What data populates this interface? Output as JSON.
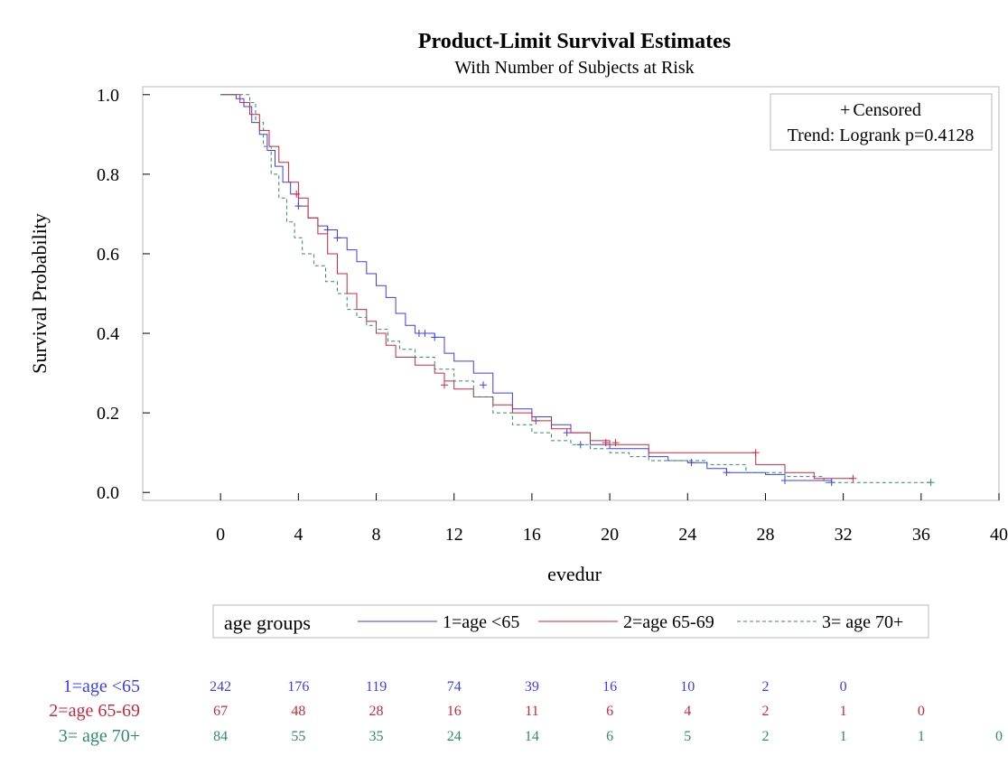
{
  "chart_data": {
    "type": "line",
    "title": "Product-Limit Survival Estimates",
    "subtitle": "With Number of Subjects at Risk",
    "xlabel": "evedur",
    "ylabel": "Survival Probability",
    "xlim": [
      -4,
      40
    ],
    "ylim": [
      -0.02,
      1.02
    ],
    "xticks": [
      0,
      4,
      8,
      12,
      16,
      20,
      24,
      28,
      32,
      36,
      40
    ],
    "yticks": [
      "0.0",
      "0.2",
      "0.4",
      "0.6",
      "0.8",
      "1.0"
    ],
    "grid": false,
    "inset_legend": {
      "position": "top-right",
      "censored_label": "Censored",
      "censored_symbol": "+",
      "test_label": "Trend: Logrank p=0.4128"
    },
    "legend": {
      "position": "bottom",
      "title": "age groups"
    },
    "series": [
      {
        "name": "1=age <65",
        "color": "#3d3df0",
        "dash": "",
        "points": [
          [
            0,
            1.0
          ],
          [
            0.8,
            0.99
          ],
          [
            1.2,
            0.97
          ],
          [
            1.6,
            0.93
          ],
          [
            2.0,
            0.9
          ],
          [
            2.4,
            0.86
          ],
          [
            2.8,
            0.82
          ],
          [
            3.2,
            0.78
          ],
          [
            3.6,
            0.75
          ],
          [
            4.0,
            0.72
          ],
          [
            4.5,
            0.69
          ],
          [
            5.0,
            0.67
          ],
          [
            5.5,
            0.66
          ],
          [
            6.0,
            0.64
          ],
          [
            6.5,
            0.61
          ],
          [
            7.0,
            0.58
          ],
          [
            7.5,
            0.55
          ],
          [
            8.0,
            0.52
          ],
          [
            8.5,
            0.49
          ],
          [
            9.0,
            0.45
          ],
          [
            9.5,
            0.42
          ],
          [
            10.0,
            0.4
          ],
          [
            11.0,
            0.39
          ],
          [
            11.5,
            0.35
          ],
          [
            12.0,
            0.33
          ],
          [
            13.0,
            0.3
          ],
          [
            14.0,
            0.25
          ],
          [
            15.0,
            0.21
          ],
          [
            16.0,
            0.19
          ],
          [
            17.0,
            0.17
          ],
          [
            18.0,
            0.15
          ],
          [
            19.0,
            0.12
          ],
          [
            20.0,
            0.11
          ],
          [
            22.0,
            0.09
          ],
          [
            23.0,
            0.08
          ],
          [
            24.0,
            0.075
          ],
          [
            25.0,
            0.06
          ],
          [
            26.0,
            0.05
          ],
          [
            28.0,
            0.045
          ],
          [
            29.0,
            0.03
          ],
          [
            31.4,
            0.025
          ]
        ],
        "censored": [
          [
            4.0,
            0.72
          ],
          [
            5.5,
            0.66
          ],
          [
            6.0,
            0.64
          ],
          [
            10.2,
            0.4
          ],
          [
            10.5,
            0.4
          ],
          [
            11.0,
            0.39
          ],
          [
            13.5,
            0.27
          ],
          [
            16.2,
            0.18
          ],
          [
            17.8,
            0.15
          ],
          [
            18.5,
            0.12
          ],
          [
            24.2,
            0.075
          ],
          [
            26.0,
            0.05
          ],
          [
            29.0,
            0.03
          ],
          [
            31.4,
            0.025
          ]
        ]
      },
      {
        "name": "2=age 65-69",
        "color": "#c8283c",
        "dash": "",
        "points": [
          [
            0,
            1.0
          ],
          [
            1.0,
            0.98
          ],
          [
            1.5,
            0.95
          ],
          [
            2.0,
            0.91
          ],
          [
            2.5,
            0.87
          ],
          [
            3.0,
            0.83
          ],
          [
            3.5,
            0.78
          ],
          [
            4.0,
            0.74
          ],
          [
            4.5,
            0.69
          ],
          [
            5.0,
            0.65
          ],
          [
            5.5,
            0.6
          ],
          [
            6.0,
            0.55
          ],
          [
            6.5,
            0.5
          ],
          [
            7.0,
            0.46
          ],
          [
            7.5,
            0.43
          ],
          [
            8.0,
            0.4
          ],
          [
            8.5,
            0.37
          ],
          [
            9.0,
            0.34
          ],
          [
            10.0,
            0.32
          ],
          [
            11.0,
            0.3
          ],
          [
            11.5,
            0.28
          ],
          [
            12.0,
            0.26
          ],
          [
            13.0,
            0.24
          ],
          [
            14.0,
            0.22
          ],
          [
            15.0,
            0.2
          ],
          [
            16.0,
            0.18
          ],
          [
            17.0,
            0.16
          ],
          [
            18.0,
            0.15
          ],
          [
            19.0,
            0.13
          ],
          [
            20.0,
            0.12
          ],
          [
            22.0,
            0.1
          ],
          [
            27.0,
            0.1
          ],
          [
            27.5,
            0.07
          ],
          [
            29.0,
            0.05
          ],
          [
            30.5,
            0.035
          ],
          [
            32.5,
            0.035
          ]
        ],
        "censored": [
          [
            3.9,
            0.75
          ],
          [
            11.5,
            0.27
          ],
          [
            19.8,
            0.125
          ],
          [
            20.3,
            0.125
          ],
          [
            27.5,
            0.1
          ],
          [
            32.5,
            0.035
          ]
        ]
      },
      {
        "name": "3= age 70+",
        "color": "#2e8b6e",
        "dash": "4,3",
        "points": [
          [
            0,
            1.0
          ],
          [
            1.5,
            0.98
          ],
          [
            1.8,
            0.93
          ],
          [
            2.2,
            0.87
          ],
          [
            2.6,
            0.8
          ],
          [
            3.0,
            0.74
          ],
          [
            3.4,
            0.68
          ],
          [
            3.8,
            0.64
          ],
          [
            4.2,
            0.6
          ],
          [
            4.8,
            0.57
          ],
          [
            5.4,
            0.53
          ],
          [
            6.0,
            0.5
          ],
          [
            6.5,
            0.46
          ],
          [
            7.0,
            0.44
          ],
          [
            7.5,
            0.42
          ],
          [
            8.0,
            0.41
          ],
          [
            8.6,
            0.38
          ],
          [
            9.2,
            0.36
          ],
          [
            10.0,
            0.34
          ],
          [
            11.0,
            0.31
          ],
          [
            12.0,
            0.28
          ],
          [
            13.0,
            0.24
          ],
          [
            14.0,
            0.2
          ],
          [
            15.0,
            0.17
          ],
          [
            16.0,
            0.15
          ],
          [
            17.0,
            0.13
          ],
          [
            18.0,
            0.12
          ],
          [
            19.0,
            0.11
          ],
          [
            20.0,
            0.1
          ],
          [
            21.0,
            0.09
          ],
          [
            22.0,
            0.08
          ],
          [
            25.0,
            0.07
          ],
          [
            27.0,
            0.05
          ],
          [
            29.0,
            0.04
          ],
          [
            31.0,
            0.025
          ],
          [
            36.5,
            0.025
          ]
        ],
        "censored": [
          [
            36.5,
            0.025
          ]
        ]
      }
    ],
    "at_risk": {
      "times": [
        0,
        4,
        8,
        12,
        16,
        20,
        24,
        28,
        32,
        36,
        40
      ],
      "rows": [
        {
          "label": "1=age <65",
          "color": "#3d3df0",
          "values": [
            "242",
            "176",
            "119",
            "74",
            "39",
            "16",
            "10",
            "2",
            "0"
          ]
        },
        {
          "label": "2=age 65-69",
          "color": "#c8283c",
          "values": [
            "67",
            "48",
            "28",
            "16",
            "11",
            "6",
            "4",
            "2",
            "1",
            "0"
          ]
        },
        {
          "label": "3= age 70+",
          "color": "#2e8b6e",
          "values": [
            "84",
            "55",
            "35",
            "24",
            "14",
            "6",
            "5",
            "2",
            "1",
            "1",
            "0"
          ]
        }
      ]
    }
  }
}
